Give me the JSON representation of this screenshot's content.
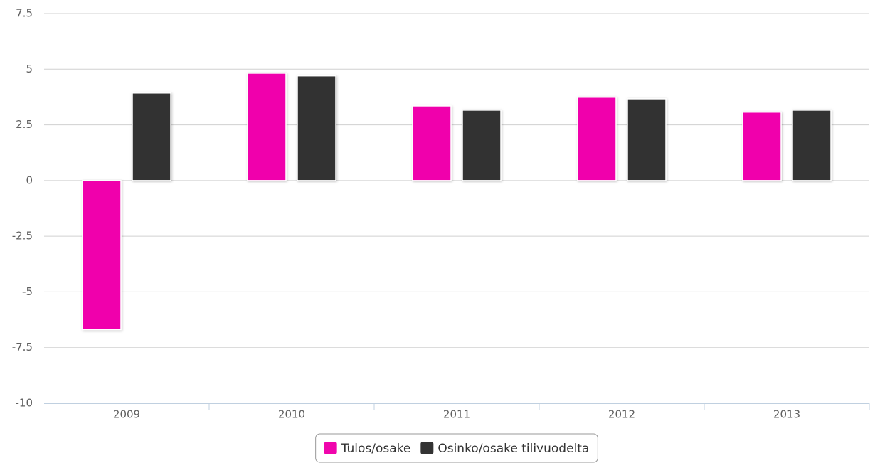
{
  "chart_data": {
    "type": "bar",
    "categories": [
      "2009",
      "2010",
      "2011",
      "2012",
      "2013"
    ],
    "series": [
      {
        "name": "Tulos/osake",
        "color": "#f005ac",
        "values": [
          -6.7,
          4.82,
          3.35,
          3.74,
          3.07
        ]
      },
      {
        "name": "Osinko/osake tilivuodelta",
        "color": "#333333",
        "values": [
          3.93,
          4.7,
          3.16,
          3.67,
          3.16
        ]
      }
    ],
    "ylim": [
      -10,
      7.5
    ],
    "yticks": [
      -10,
      -7.5,
      -5,
      -2.5,
      0,
      2.5,
      5,
      7.5
    ],
    "grid": true,
    "legend": "bottom"
  }
}
